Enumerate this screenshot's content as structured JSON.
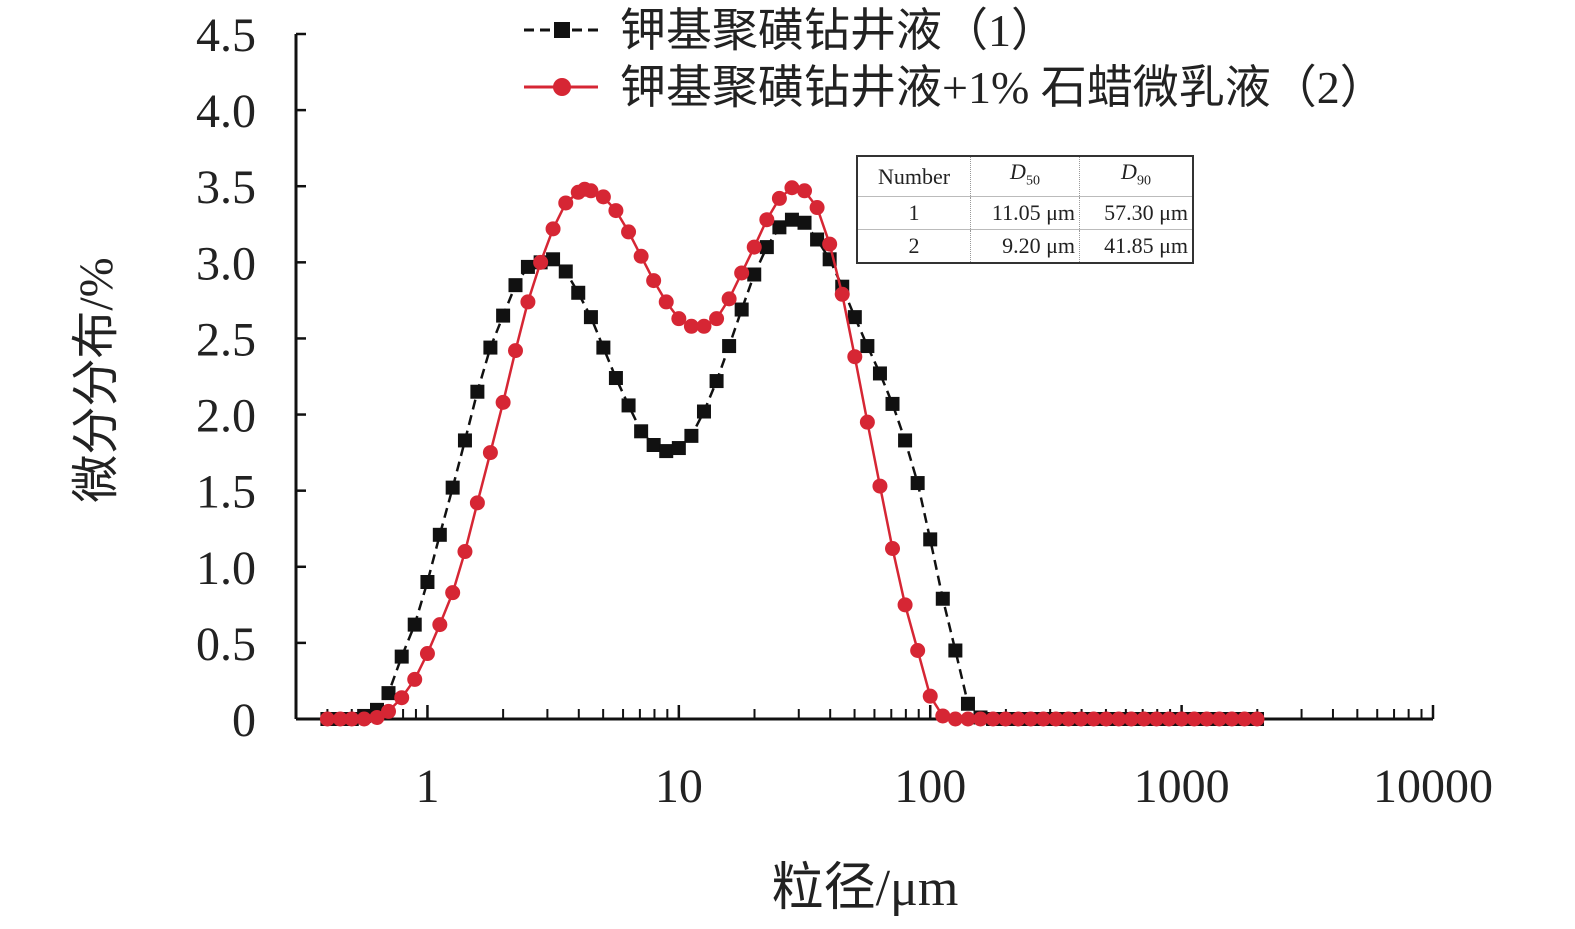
{
  "chart_data": {
    "type": "line",
    "xlabel": "粒径/μm",
    "ylabel": "微分分布/%",
    "x_scale": "log",
    "xlim": [
      0.3,
      10000
    ],
    "ylim": [
      0,
      4.5
    ],
    "x_ticks": [
      1,
      10,
      100,
      1000,
      10000
    ],
    "x_tick_labels": [
      "1",
      "10",
      "100",
      "1000",
      "10000"
    ],
    "y_ticks": [
      0,
      0.5,
      1.0,
      1.5,
      2.0,
      2.5,
      3.0,
      3.5,
      4.0,
      4.5
    ],
    "y_tick_labels": [
      "0",
      "0.5",
      "1.0",
      "1.5",
      "2.0",
      "2.5",
      "3.0",
      "3.5",
      "4.0",
      "4.5"
    ],
    "grid": false,
    "legend_position": "top",
    "series": [
      {
        "name": "钾基聚磺钻井液（1）",
        "color": "#111111",
        "marker": "square",
        "x": [
          0.4,
          0.45,
          0.5,
          0.56,
          0.63,
          0.7,
          0.79,
          0.89,
          1.0,
          1.12,
          1.26,
          1.41,
          1.58,
          1.78,
          2.0,
          2.24,
          2.51,
          2.82,
          3.16,
          3.55,
          3.98,
          4.47,
          5.01,
          5.62,
          6.31,
          7.08,
          7.94,
          8.91,
          10.0,
          11.22,
          12.59,
          14.13,
          15.85,
          17.78,
          19.95,
          22.39,
          25.12,
          28.18,
          31.62,
          35.48,
          39.81,
          44.67,
          50.12,
          56.23,
          63.1,
          70.79,
          79.43,
          89.13,
          100.0,
          112.2,
          125.9,
          141.3,
          158.5,
          177.8,
          199.5,
          223.9,
          251.2,
          281.8,
          316.2,
          354.8,
          398.1,
          446.7,
          501.2,
          562.3,
          631.0,
          707.9,
          794.3,
          891.3,
          1000,
          1122,
          1259,
          1413,
          1585,
          1778,
          1995
        ],
        "values": [
          0,
          0,
          0,
          0.02,
          0.06,
          0.17,
          0.41,
          0.62,
          0.9,
          1.21,
          1.52,
          1.83,
          2.15,
          2.44,
          2.65,
          2.85,
          2.97,
          3.0,
          3.02,
          2.94,
          2.8,
          2.64,
          2.44,
          2.24,
          2.06,
          1.89,
          1.8,
          1.76,
          1.78,
          1.86,
          2.02,
          2.22,
          2.45,
          2.69,
          2.92,
          3.1,
          3.23,
          3.28,
          3.26,
          3.15,
          3.02,
          2.84,
          2.64,
          2.45,
          2.27,
          2.07,
          1.83,
          1.55,
          1.18,
          0.79,
          0.45,
          0.1,
          0.01,
          0,
          0,
          0,
          0,
          0,
          0,
          0,
          0,
          0,
          0,
          0,
          0,
          0,
          0,
          0,
          0,
          0,
          0,
          0,
          0,
          0,
          0
        ]
      },
      {
        "name": "钾基聚磺钻井液+1% 石蜡微乳液（2）",
        "color": "#d62634",
        "marker": "circle",
        "x": [
          0.4,
          0.45,
          0.5,
          0.56,
          0.63,
          0.7,
          0.79,
          0.89,
          1.0,
          1.12,
          1.26,
          1.41,
          1.58,
          1.78,
          2.0,
          2.24,
          2.51,
          2.82,
          3.16,
          3.55,
          3.98,
          4.22,
          4.47,
          5.01,
          5.62,
          6.31,
          7.08,
          7.94,
          8.91,
          10.0,
          11.22,
          12.59,
          14.13,
          15.85,
          17.78,
          19.95,
          22.39,
          25.12,
          28.18,
          31.62,
          35.48,
          39.81,
          44.67,
          50.12,
          56.23,
          63.1,
          70.79,
          79.43,
          89.13,
          100.0,
          112.2,
          125.9,
          141.3,
          158.5,
          177.8,
          199.5,
          223.9,
          251.2,
          281.8,
          316.2,
          354.8,
          398.1,
          446.7,
          501.2,
          562.3,
          631.0,
          707.9,
          794.3,
          891.3,
          1000,
          1122,
          1259,
          1413,
          1585,
          1778,
          1995
        ],
        "values": [
          0,
          0,
          0,
          0,
          0.01,
          0.05,
          0.14,
          0.26,
          0.43,
          0.62,
          0.83,
          1.1,
          1.42,
          1.75,
          2.08,
          2.42,
          2.74,
          3.0,
          3.22,
          3.39,
          3.46,
          3.48,
          3.47,
          3.43,
          3.34,
          3.2,
          3.04,
          2.88,
          2.74,
          2.63,
          2.58,
          2.58,
          2.63,
          2.76,
          2.93,
          3.1,
          3.28,
          3.42,
          3.49,
          3.47,
          3.36,
          3.12,
          2.79,
          2.38,
          1.95,
          1.53,
          1.12,
          0.75,
          0.45,
          0.15,
          0.02,
          0,
          0,
          0,
          0,
          0,
          0,
          0,
          0,
          0,
          0,
          0,
          0,
          0,
          0,
          0,
          0,
          0,
          0,
          0,
          0,
          0,
          0,
          0,
          0,
          0
        ]
      }
    ],
    "inset_table": {
      "headers": [
        "Number",
        "D",
        "D"
      ],
      "header_subscripts": [
        "",
        "50",
        "90"
      ],
      "rows": [
        [
          "1",
          "11.05 μm",
          "57.30 μm"
        ],
        [
          "2",
          "9.20 μm",
          "41.85 μm"
        ]
      ]
    }
  }
}
